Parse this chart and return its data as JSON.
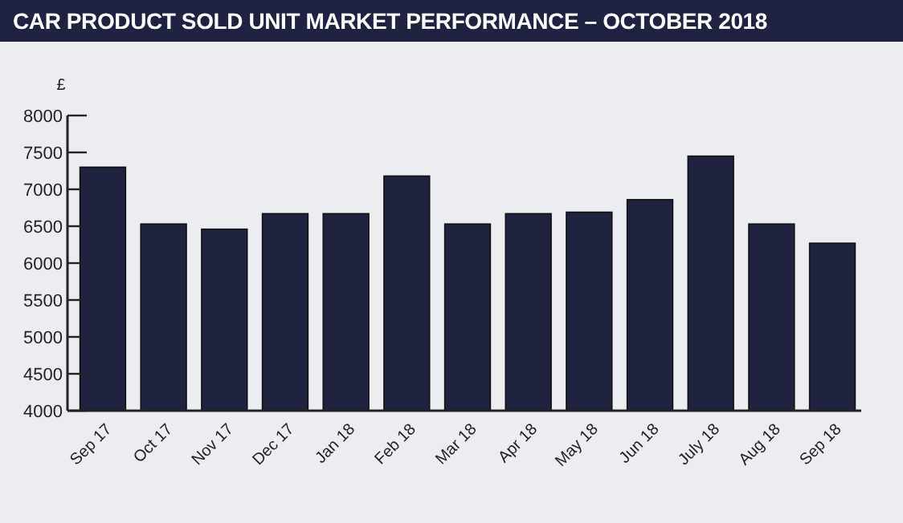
{
  "chart_data": {
    "type": "bar",
    "title": "CAR PRODUCT SOLD UNIT MARKET PERFORMANCE – OCTOBER 2018",
    "ylabel": "£",
    "categories": [
      "Sep 17",
      "Oct 17",
      "Nov 17",
      "Dec 17",
      "Jan 18",
      "Feb 18",
      "Mar 18",
      "Apr 18",
      "May 18",
      "Jun 18",
      "July 18",
      "Aug 18",
      "Sep 18"
    ],
    "values": [
      7300,
      6530,
      6460,
      6670,
      6670,
      7180,
      6530,
      6670,
      6690,
      6860,
      7450,
      6530,
      6270
    ],
    "color": "#20233f",
    "ylim": [
      4000,
      8000
    ],
    "yticks": [
      4000,
      4500,
      5000,
      5500,
      6000,
      6500,
      7000,
      7500,
      8000
    ],
    "grid": false
  }
}
